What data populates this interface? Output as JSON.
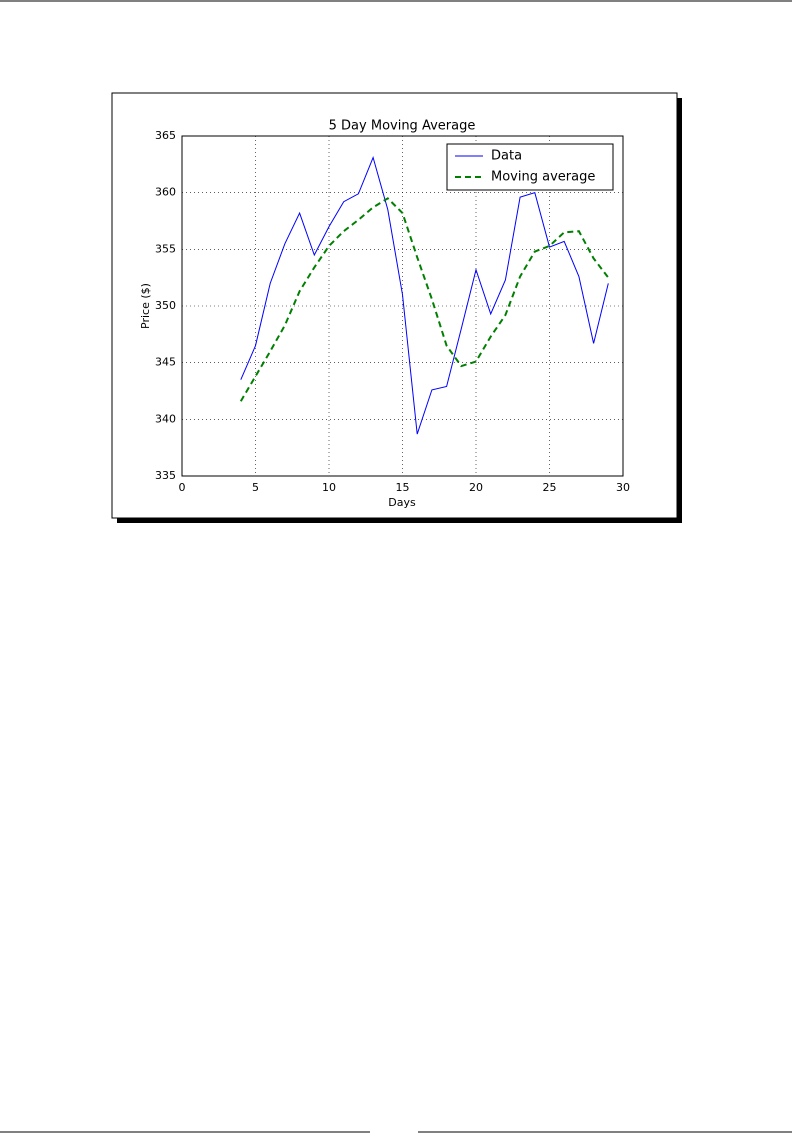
{
  "chart_data": {
    "type": "line",
    "title": "5 Day Moving Average",
    "xlabel": "Days",
    "ylabel": "Price ($)",
    "x": [
      4,
      5,
      6,
      7,
      8,
      9,
      10,
      11,
      12,
      13,
      14,
      15,
      16,
      17,
      18,
      19,
      20,
      21,
      22,
      23,
      24,
      25,
      26,
      27,
      28,
      29
    ],
    "series": [
      {
        "name": "Data",
        "color": "#0000ff",
        "dashed": false,
        "values": [
          343.5,
          346.5,
          352,
          355.5,
          358.2,
          354.5,
          357,
          359.2,
          359.9,
          363.1,
          358.5,
          351,
          338.7,
          342.6,
          342.9,
          348,
          353.2,
          349.3,
          352.3,
          359.6,
          360,
          355.2,
          355.7,
          352.6,
          346.7,
          352
        ]
      },
      {
        "name": "Moving average",
        "color": "#008000",
        "dashed": true,
        "values": [
          341.6,
          343.8,
          346,
          348.3,
          351.3,
          353.4,
          355.3,
          356.6,
          357.6,
          358.7,
          359.5,
          358.2,
          354.3,
          350.6,
          346.5,
          344.7,
          345.1,
          347.3,
          349.2,
          352.6,
          354.8,
          355.3,
          356.5,
          356.6,
          354.2,
          352.5
        ]
      }
    ],
    "xlim": [
      0,
      30
    ],
    "xticks": [
      0,
      5,
      10,
      15,
      20,
      25,
      30
    ],
    "ylim": [
      335,
      365
    ],
    "yticks": [
      335,
      340,
      345,
      350,
      355,
      360,
      365
    ],
    "grid": true,
    "legend": "upper right"
  }
}
